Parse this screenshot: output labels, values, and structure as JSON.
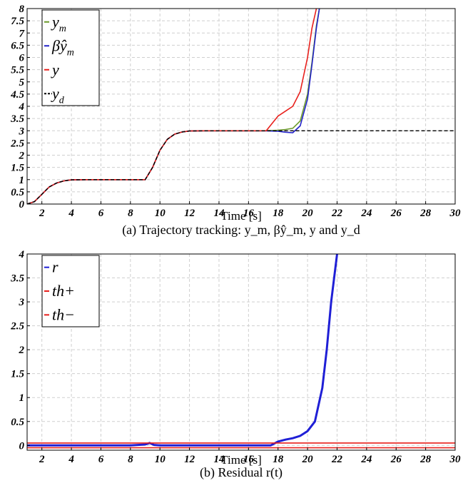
{
  "chart_data": [
    {
      "type": "line",
      "caption": "(a) Trajectory tracking: y_m, βŷ_m, y and y_d",
      "xlabel": "Time [s]",
      "ylabel": "",
      "xlim": [
        1,
        30
      ],
      "ylim": [
        0,
        8
      ],
      "x_ticks": [
        "2",
        "4",
        "6",
        "8",
        "10",
        "12",
        "14",
        "16",
        "18",
        "20",
        "22",
        "24",
        "26",
        "28",
        "30"
      ],
      "y_ticks": [
        "0",
        "0.5",
        "1",
        "1.5",
        "2",
        "2.5",
        "3",
        "3.5",
        "4",
        "4.5",
        "5",
        "5.5",
        "6",
        "6.5",
        "7",
        "7.5",
        "8"
      ],
      "grid": true,
      "legend_position": "top-left",
      "legend": [
        "y_m",
        "βŷ_m",
        "y",
        "y_d"
      ],
      "series": [
        {
          "name": "y_m",
          "color": "#6b9a2a",
          "style": "solid",
          "x": [
            1,
            1.5,
            2,
            2.5,
            3,
            3.5,
            4,
            5,
            6,
            7,
            8,
            9,
            9.5,
            10,
            10.5,
            11,
            11.5,
            12,
            13,
            14,
            16,
            17,
            18,
            18.5,
            19,
            19.5,
            20,
            20.3,
            20.6,
            20.8
          ],
          "y": [
            0,
            0.1,
            0.4,
            0.7,
            0.86,
            0.95,
            0.99,
            1,
            1,
            1,
            1,
            1,
            1.5,
            2.2,
            2.65,
            2.86,
            2.95,
            2.99,
            3,
            3,
            3,
            3,
            3.02,
            3.05,
            3.1,
            3.4,
            4.5,
            5.8,
            7.3,
            8
          ]
        },
        {
          "name": "βŷ_m",
          "color": "#2323c8",
          "style": "solid",
          "x": [
            1,
            1.5,
            2,
            2.5,
            3,
            3.5,
            4,
            5,
            6,
            7,
            8,
            9,
            9.5,
            10,
            10.5,
            11,
            11.5,
            12,
            13,
            14,
            16,
            17,
            18,
            18.5,
            19,
            19.5,
            20,
            20.3,
            20.6,
            20.8
          ],
          "y": [
            0,
            0.1,
            0.4,
            0.7,
            0.86,
            0.95,
            0.99,
            1,
            1,
            1,
            1,
            1,
            1.5,
            2.2,
            2.65,
            2.86,
            2.95,
            2.99,
            3,
            3,
            3,
            3,
            2.98,
            2.94,
            2.92,
            3.2,
            4.3,
            5.7,
            7.2,
            8
          ]
        },
        {
          "name": "y",
          "color": "#e8201c",
          "style": "solid",
          "x": [
            1,
            1.5,
            2,
            2.5,
            3,
            3.5,
            4,
            5,
            6,
            7,
            8,
            9,
            9.5,
            10,
            10.5,
            11,
            11.5,
            12,
            13,
            14,
            16,
            17.2,
            17.6,
            18,
            18.5,
            19,
            19.5,
            20,
            20.3,
            20.6
          ],
          "y": [
            0,
            0.1,
            0.4,
            0.7,
            0.86,
            0.95,
            0.99,
            1,
            1,
            1,
            1,
            1,
            1.5,
            2.2,
            2.65,
            2.86,
            2.95,
            2.99,
            3,
            3,
            3,
            3,
            3.3,
            3.6,
            3.8,
            4.0,
            4.6,
            6.0,
            7.2,
            8
          ]
        },
        {
          "name": "y_d",
          "color": "#000000",
          "style": "dashed",
          "x": [
            1,
            1.5,
            2,
            2.5,
            3,
            3.5,
            4,
            5,
            6,
            7,
            8,
            9,
            9.5,
            10,
            10.5,
            11,
            11.5,
            12,
            13,
            14,
            16,
            18,
            20,
            22,
            24,
            26,
            28,
            30
          ],
          "y": [
            0,
            0.1,
            0.4,
            0.7,
            0.86,
            0.95,
            0.99,
            1,
            1,
            1,
            1,
            1,
            1.5,
            2.2,
            2.65,
            2.86,
            2.95,
            2.99,
            3,
            3,
            3,
            3,
            3,
            3,
            3,
            3,
            3,
            3
          ]
        }
      ]
    },
    {
      "type": "line",
      "caption": "(b) Residual r(t)",
      "xlabel": "Time [s]",
      "ylabel": "",
      "xlim": [
        1,
        30
      ],
      "ylim": [
        -0.1,
        4
      ],
      "x_ticks": [
        "2",
        "4",
        "6",
        "8",
        "10",
        "12",
        "14",
        "16",
        "18",
        "20",
        "22",
        "24",
        "26",
        "28",
        "30"
      ],
      "y_ticks": [
        "0",
        "0.5",
        "1",
        "1.5",
        "2",
        "2.5",
        "3",
        "3.5",
        "4"
      ],
      "grid": true,
      "legend_position": "top-left",
      "legend": [
        "r",
        "th+",
        "th−"
      ],
      "series": [
        {
          "name": "r",
          "color": "#1f1fd6",
          "style": "solid",
          "x": [
            1,
            2,
            4,
            6,
            8,
            9,
            9.3,
            9.6,
            10,
            12,
            14,
            16,
            17.5,
            18,
            18.5,
            19,
            19.5,
            20,
            20.5,
            21,
            21.3,
            21.6,
            22
          ],
          "y": [
            0,
            0,
            0,
            0,
            0,
            0.02,
            0.05,
            0.01,
            0,
            0,
            0,
            0,
            0,
            0.08,
            0.12,
            0.15,
            0.2,
            0.3,
            0.5,
            1.2,
            2.0,
            3.0,
            4.0
          ]
        },
        {
          "name": "th+",
          "color": "#e8201c",
          "style": "solid",
          "x": [
            1,
            30
          ],
          "y": [
            0.05,
            0.05
          ]
        },
        {
          "name": "th−",
          "color": "#e8201c",
          "style": "solid",
          "x": [
            1,
            30
          ],
          "y": [
            -0.05,
            -0.05
          ]
        }
      ]
    }
  ]
}
